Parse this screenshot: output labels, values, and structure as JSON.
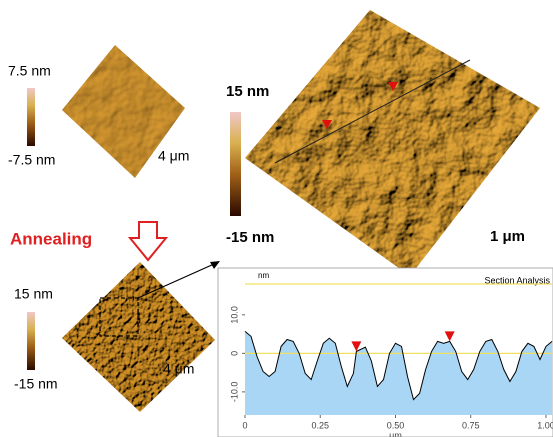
{
  "panels": {
    "before": {
      "scale_max": "7.5 nm",
      "scale_min": "-7.5 nm",
      "size": "4 μm"
    },
    "after": {
      "scale_max": "15 nm",
      "scale_min": "-15 nm",
      "size": "4 μm"
    },
    "zoom": {
      "scale_max": "15 nm",
      "scale_min": "-15 nm",
      "size": "1 μm"
    }
  },
  "annealing": "Annealing",
  "chart_data": {
    "type": "line",
    "title": "Section Analysis",
    "ylabel": "nm",
    "xlabel": "μm",
    "x": [
      0,
      0.02,
      0.04,
      0.06,
      0.08,
      0.1,
      0.12,
      0.14,
      0.16,
      0.18,
      0.2,
      0.22,
      0.24,
      0.26,
      0.28,
      0.3,
      0.32,
      0.34,
      0.36,
      0.37,
      0.4,
      0.42,
      0.44,
      0.46,
      0.48,
      0.5,
      0.52,
      0.54,
      0.56,
      0.58,
      0.6,
      0.62,
      0.64,
      0.66,
      0.68,
      0.7,
      0.72,
      0.74,
      0.76,
      0.78,
      0.8,
      0.82,
      0.84,
      0.86,
      0.88,
      0.9,
      0.92,
      0.94,
      0.96,
      0.98,
      1.0,
      1.02
    ],
    "values": [
      5.7,
      4.4,
      -0.8,
      -4.7,
      -6,
      -4.7,
      1.8,
      3.6,
      3.1,
      0,
      -5.2,
      -6.8,
      -2,
      2.6,
      3.9,
      2.6,
      -3.4,
      -8.6,
      -5.2,
      0.5,
      1.6,
      -2,
      -8.6,
      -6.8,
      0,
      2.6,
      1.8,
      -6,
      -12,
      -10.4,
      -4.2,
      0.5,
      3.1,
      2.6,
      3.1,
      0.5,
      -4.7,
      -6.8,
      -4.2,
      0.5,
      3.1,
      3.6,
      0.5,
      -4.2,
      -7.3,
      -4.7,
      0.5,
      2.6,
      1.8,
      -1.6,
      1.8,
      3.1
    ],
    "color": "#000000",
    "fill_color": "#a9d6f5",
    "zero_line_color": "#f0e060",
    "cursors": [
      {
        "x": 0.37,
        "y": 0.5
      },
      {
        "x": 0.68,
        "y": 3.1
      }
    ],
    "cursor_color": "#e01010",
    "xlim": [
      0,
      1.02
    ],
    "ylim": [
      -16,
      18
    ],
    "xticks": [
      0,
      0.25,
      {
        "value": 0.5,
        "label": "0.50"
      },
      0.75,
      {
        "value": 1,
        "label": "1.00"
      }
    ],
    "yticks": [
      {
        "value": 10,
        "label": "10.0"
      },
      0,
      {
        "value": -10,
        "label": "-10.0"
      }
    ]
  }
}
